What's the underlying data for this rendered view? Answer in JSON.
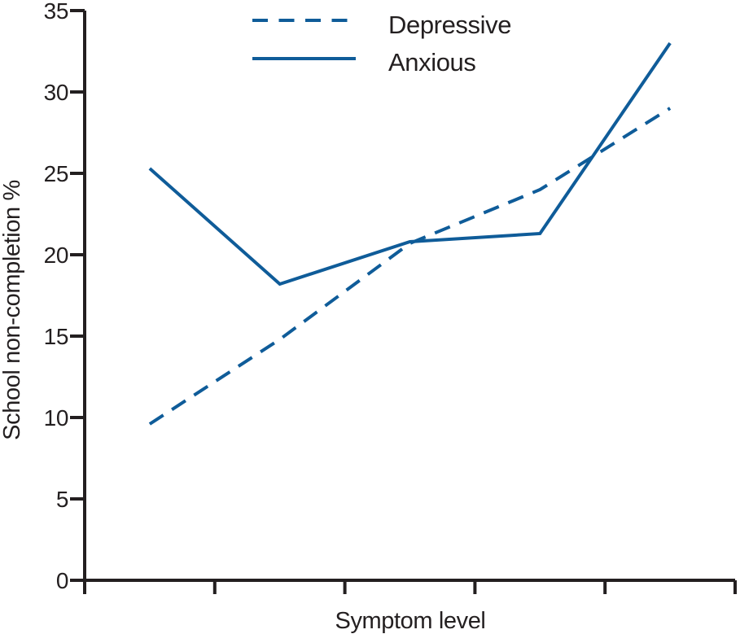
{
  "chart_data": {
    "type": "line",
    "title": "",
    "xlabel": "Symptom level",
    "ylabel": "School non-completion %",
    "ylim": [
      0,
      35
    ],
    "y_ticks": [
      0,
      5,
      10,
      15,
      20,
      25,
      30,
      35
    ],
    "x_levels": 5,
    "x_tick_labels": [],
    "grid": false,
    "legend_position": "top-center",
    "colors": {
      "line": "#0f5c99",
      "axis": "#231f20",
      "text": "#231f20",
      "background": "#ffffff"
    },
    "series": [
      {
        "name": "Depressive",
        "style": "dashed",
        "values": [
          9.6,
          14.8,
          20.7,
          24.0,
          29.0
        ]
      },
      {
        "name": "Anxious",
        "style": "solid",
        "values": [
          25.3,
          18.2,
          20.8,
          21.3,
          33.0
        ]
      }
    ]
  }
}
